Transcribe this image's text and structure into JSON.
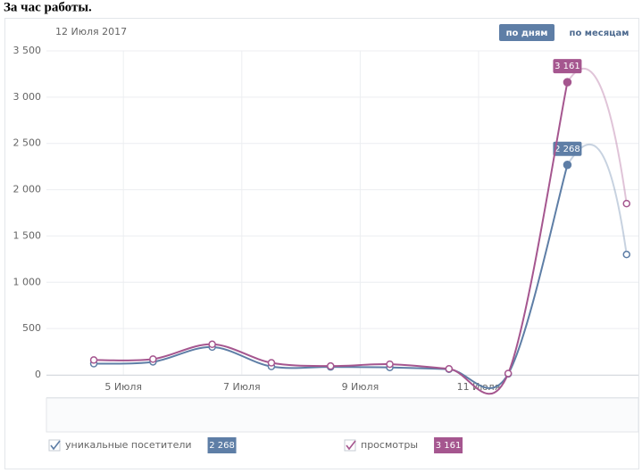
{
  "title": "За час работы.",
  "chart_data": {
    "type": "line",
    "date": "12 Июля 2017",
    "modes": [
      "по дням",
      "по месяцам"
    ],
    "x": [
      4.5,
      5.5,
      6.5,
      7.5,
      8.5,
      9.5,
      10.5,
      11.5,
      12.5,
      13.5
    ],
    "xlim": [
      3.7,
      13.7
    ],
    "xticks": [
      {
        "value": 5,
        "label": "5 Июля"
      },
      {
        "value": 7,
        "label": "7 Июля"
      },
      {
        "value": 9,
        "label": "9 Июля"
      },
      {
        "value": 11,
        "label": "11 Июля"
      }
    ],
    "ylim": [
      0,
      3500
    ],
    "yticks": [
      0,
      500,
      {
        "value": 1000,
        "label": "1 000"
      },
      {
        "value": 1500,
        "label": "1 500"
      },
      {
        "value": 2000,
        "label": "2 000"
      },
      {
        "value": 2500,
        "label": "2 500"
      },
      {
        "value": 3000,
        "label": "3 000"
      },
      {
        "value": 3500,
        "label": "3 500"
      }
    ],
    "grid": true,
    "series": [
      {
        "name": "уникальные посетители",
        "color": "#5e7ea6",
        "values": [
          120,
          140,
          300,
          90,
          85,
          80,
          60,
          10,
          2268,
          1300
        ],
        "value_labels": [
          null,
          null,
          null,
          null,
          null,
          null,
          null,
          null,
          "2 268",
          null
        ]
      },
      {
        "name": "просмотры",
        "color": "#a5568f",
        "values": [
          160,
          170,
          330,
          130,
          95,
          115,
          65,
          15,
          3161,
          1850
        ],
        "value_labels": [
          null,
          null,
          null,
          null,
          null,
          null,
          null,
          null,
          "3 161",
          null
        ]
      }
    ]
  }
}
